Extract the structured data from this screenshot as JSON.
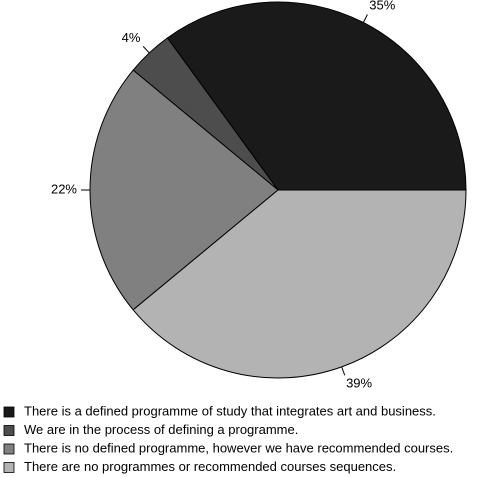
{
  "chart_data": {
    "type": "pie",
    "categories": [
      "There is a defined programme of study that integrates art and business.",
      "We are in the process of defining a programme.",
      "There is no defined programme, however we have recommended courses.",
      "There are no programmes or recommended courses sequences."
    ],
    "values": [
      35,
      4,
      22,
      39
    ],
    "value_labels": [
      "35%",
      "4%",
      "22%",
      "39%"
    ],
    "colors": [
      "#1a1a1a",
      "#4d4d4d",
      "#808080",
      "#b3b3b3"
    ]
  }
}
